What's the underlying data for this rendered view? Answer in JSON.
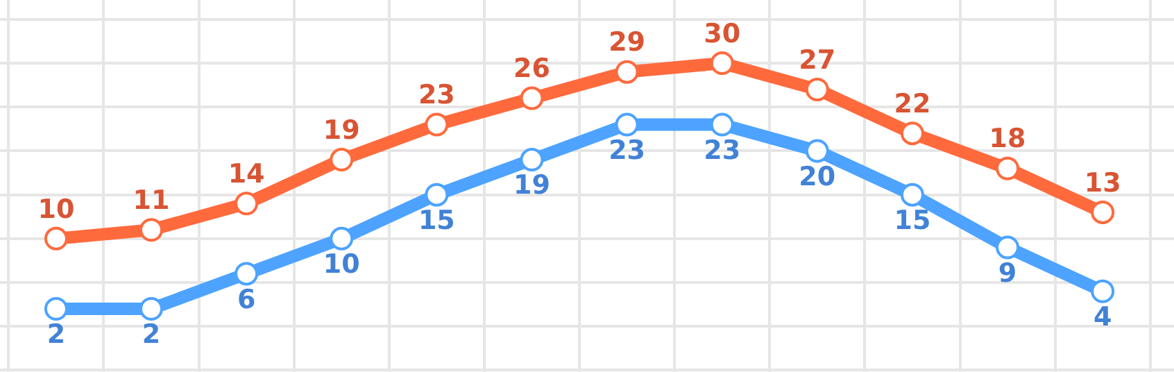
{
  "chart_data": {
    "type": "line",
    "categories": [
      null,
      null,
      null,
      null,
      null,
      null,
      null,
      null,
      null,
      null,
      null,
      null
    ],
    "series": [
      {
        "color": "#ff6a3d",
        "values": [
          10,
          11,
          14,
          19,
          23,
          26,
          29,
          30,
          27,
          22,
          18,
          13
        ]
      },
      {
        "color": "#4da3ff",
        "values": [
          2,
          2,
          6,
          10,
          15,
          19,
          23,
          23,
          20,
          15,
          9,
          4
        ]
      }
    ],
    "ylim": [
      -5.2,
      37.2
    ],
    "yticks": [
      {
        "value": -5,
        "label": null
      },
      {
        "value": 0,
        "label": null
      },
      {
        "value": 5,
        "label": null
      },
      {
        "value": 10,
        "label": null
      },
      {
        "value": 15,
        "label": null
      },
      {
        "value": 20,
        "label": null
      },
      {
        "value": 25,
        "label": null
      },
      {
        "value": 30,
        "label": null
      },
      {
        "value": 35,
        "label": null
      }
    ],
    "grid": true,
    "marker": "circle",
    "line_style": "solid",
    "data_labels": true
  }
}
